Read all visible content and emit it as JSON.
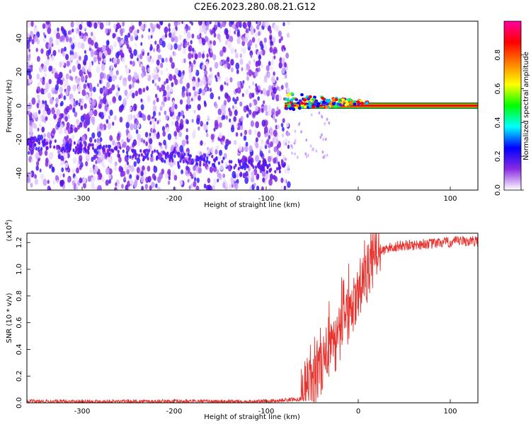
{
  "title": "C2E6.2023.280.08.21.G12",
  "chart_data": [
    {
      "type": "heatmap",
      "xlabel": "Height of straight line (km)",
      "ylabel": "Frequency (Hz)",
      "xlim": [
        -360,
        130
      ],
      "ylim": [
        -50,
        50
      ],
      "x_ticks": [
        -300,
        -200,
        -100,
        0,
        100
      ],
      "y_ticks": [
        -40,
        -20,
        0,
        20,
        40
      ],
      "noise_region_x": [
        -360,
        -80
      ],
      "signal_line_x": [
        -80,
        130
      ],
      "signal_line_frequency_hz": 0,
      "colorbar": {
        "label": "Normalized spectral amplitude",
        "range": [
          0,
          1
        ],
        "ticks": [
          "0.0",
          "0.2",
          "0.4",
          "0.6",
          "0.8"
        ],
        "colors": [
          "#ffffff",
          "#8a2be2",
          "#0000ff",
          "#00ffff",
          "#00ff00",
          "#ffff00",
          "#ff8000",
          "#ff0000",
          "#ff00a0"
        ]
      }
    },
    {
      "type": "line",
      "xlabel": "Height of straight line (km)",
      "ylabel": "SNR (10 * v/v)",
      "scale_label_base": "(x10",
      "scale_label_exp": "4",
      "scale_label_close": ")",
      "xlim": [
        -360,
        130
      ],
      "ylim": [
        0,
        1.27
      ],
      "x_ticks": [
        -300,
        -200,
        -100,
        0,
        100
      ],
      "y_ticks": [
        "0.0",
        "0.2",
        "0.4",
        "0.6",
        "0.8",
        "1.0",
        "1.2"
      ],
      "color": "#e8322d",
      "series": [
        {
          "x": [
            -360,
            -300,
            -200,
            -100,
            -62,
            -57,
            -52,
            -47,
            -42,
            -37,
            -32,
            -27,
            -22,
            -17,
            -12,
            -7,
            -2,
            3,
            8,
            13,
            18,
            23,
            28,
            33,
            40,
            50,
            60,
            70,
            80,
            90,
            100,
            110,
            120,
            130
          ],
          "y": [
            0.01,
            0.01,
            0.01,
            0.01,
            0.03,
            0.08,
            0.12,
            0.18,
            0.24,
            0.3,
            0.36,
            0.42,
            0.48,
            0.56,
            0.62,
            0.7,
            0.76,
            0.84,
            0.93,
            1.02,
            1.08,
            1.12,
            1.14,
            1.16,
            1.17,
            1.18,
            1.18,
            1.19,
            1.19,
            1.2,
            1.2,
            1.21,
            1.21,
            1.21
          ]
        }
      ]
    }
  ]
}
